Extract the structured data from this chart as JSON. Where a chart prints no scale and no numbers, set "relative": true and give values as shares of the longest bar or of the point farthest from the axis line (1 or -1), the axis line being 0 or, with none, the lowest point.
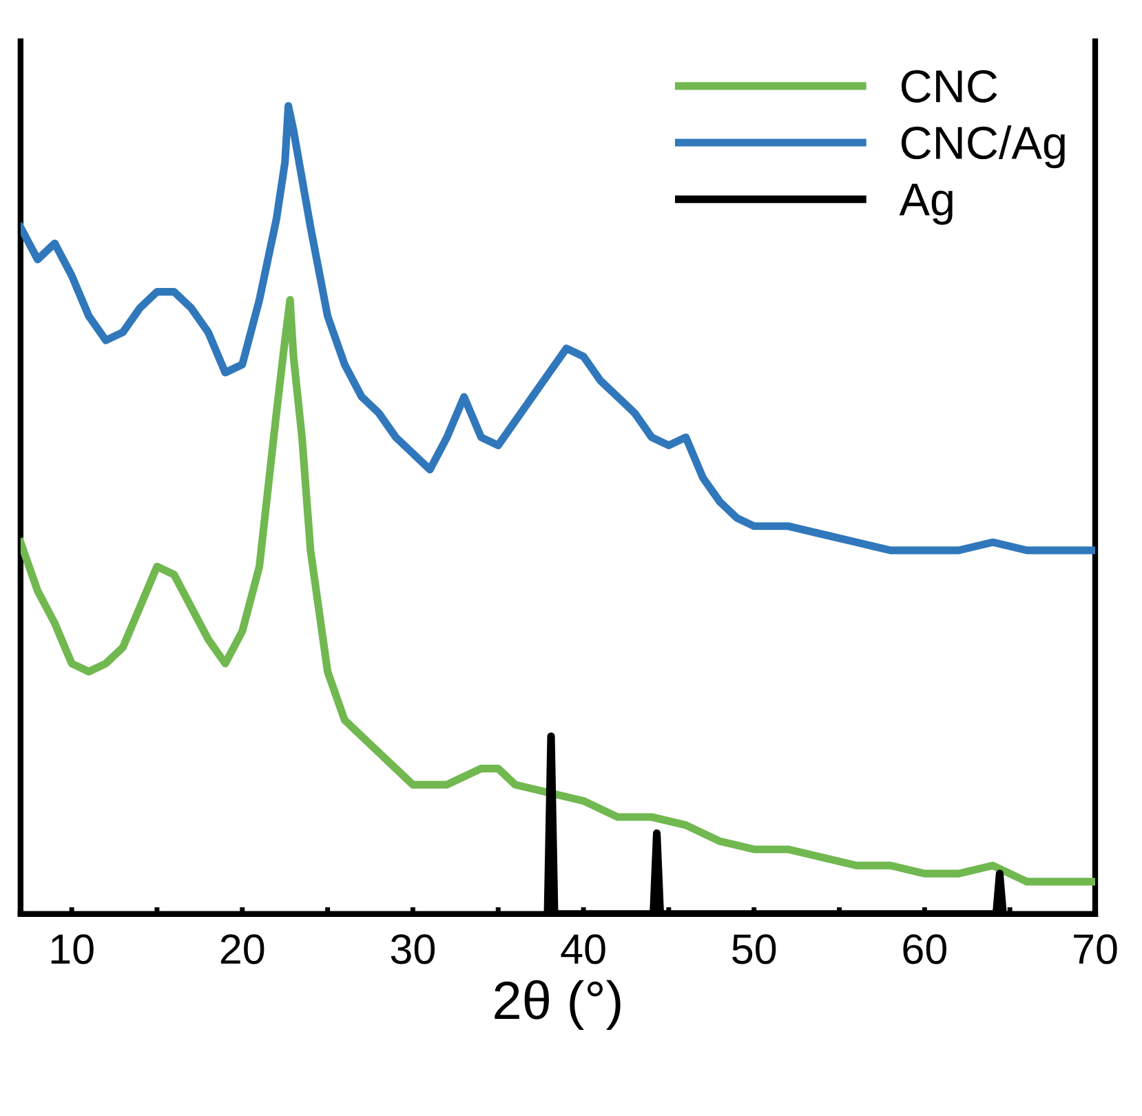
{
  "chart_data": {
    "type": "line",
    "relative": true,
    "xlabel": "2θ (°)",
    "xlim": [
      7,
      70
    ],
    "xticks": [
      10,
      {
        "value": 15,
        "label": null
      },
      20,
      {
        "value": 25,
        "label": null
      },
      30,
      {
        "value": 35,
        "label": null
      },
      40,
      {
        "value": 45,
        "label": null
      },
      50,
      {
        "value": 55,
        "label": null
      },
      60,
      {
        "value": 65,
        "label": null
      },
      70
    ],
    "legend": "top right",
    "line_style": "solid",
    "marker": "none",
    "series": [
      {
        "name": "CNC",
        "color": "#70b84f",
        "x": [
          7,
          8,
          9,
          10,
          11,
          12,
          13,
          14,
          15,
          16,
          17,
          18,
          19,
          20,
          21,
          22,
          22.5,
          22.8,
          23,
          23.5,
          24,
          25,
          26,
          27,
          28,
          29,
          30,
          32,
          34,
          35,
          36,
          38,
          40,
          42,
          44,
          46,
          48,
          50,
          52,
          54,
          56,
          58,
          60,
          62,
          64,
          66,
          68,
          70
        ],
        "values": [
          0.46,
          0.4,
          0.36,
          0.31,
          0.3,
          0.31,
          0.33,
          0.38,
          0.43,
          0.42,
          0.38,
          0.34,
          0.31,
          0.35,
          0.43,
          0.62,
          0.71,
          0.76,
          0.69,
          0.59,
          0.45,
          0.3,
          0.24,
          0.22,
          0.2,
          0.18,
          0.16,
          0.16,
          0.18,
          0.18,
          0.16,
          0.15,
          0.14,
          0.12,
          0.12,
          0.11,
          0.09,
          0.08,
          0.08,
          0.07,
          0.06,
          0.06,
          0.05,
          0.05,
          0.06,
          0.04,
          0.04,
          0.04
        ]
      },
      {
        "name": "CNC/Ag",
        "color": "#3078bb",
        "x": [
          7,
          8,
          9,
          10,
          11,
          12,
          13,
          14,
          15,
          16,
          17,
          18,
          19,
          20,
          21,
          22,
          22.5,
          22.7,
          23,
          23.5,
          24,
          25,
          26,
          27,
          28,
          29,
          30,
          31,
          32,
          33,
          34,
          35,
          36,
          37,
          38,
          39,
          40,
          41,
          42,
          43,
          44,
          45,
          46,
          47,
          48,
          49,
          50,
          52,
          54,
          56,
          58,
          60,
          62,
          64,
          66,
          68,
          70
        ],
        "values": [
          0.85,
          0.81,
          0.83,
          0.79,
          0.74,
          0.71,
          0.72,
          0.75,
          0.77,
          0.77,
          0.75,
          0.72,
          0.67,
          0.68,
          0.76,
          0.86,
          0.93,
          1.0,
          0.97,
          0.91,
          0.85,
          0.74,
          0.68,
          0.64,
          0.62,
          0.59,
          0.57,
          0.55,
          0.59,
          0.64,
          0.59,
          0.58,
          0.61,
          0.64,
          0.67,
          0.7,
          0.69,
          0.66,
          0.64,
          0.62,
          0.59,
          0.58,
          0.59,
          0.54,
          0.51,
          0.49,
          0.48,
          0.48,
          0.47,
          0.46,
          0.45,
          0.45,
          0.45,
          0.46,
          0.45,
          0.45,
          0.45
        ]
      },
      {
        "name": "Ag",
        "color": "#000000",
        "x": [
          37.9,
          38.1,
          38.3,
          44.1,
          44.3,
          44.5,
          64.2,
          64.4,
          64.6
        ],
        "values": [
          0,
          0.22,
          0,
          0,
          0.1,
          0,
          0,
          0.05,
          0
        ]
      }
    ]
  }
}
